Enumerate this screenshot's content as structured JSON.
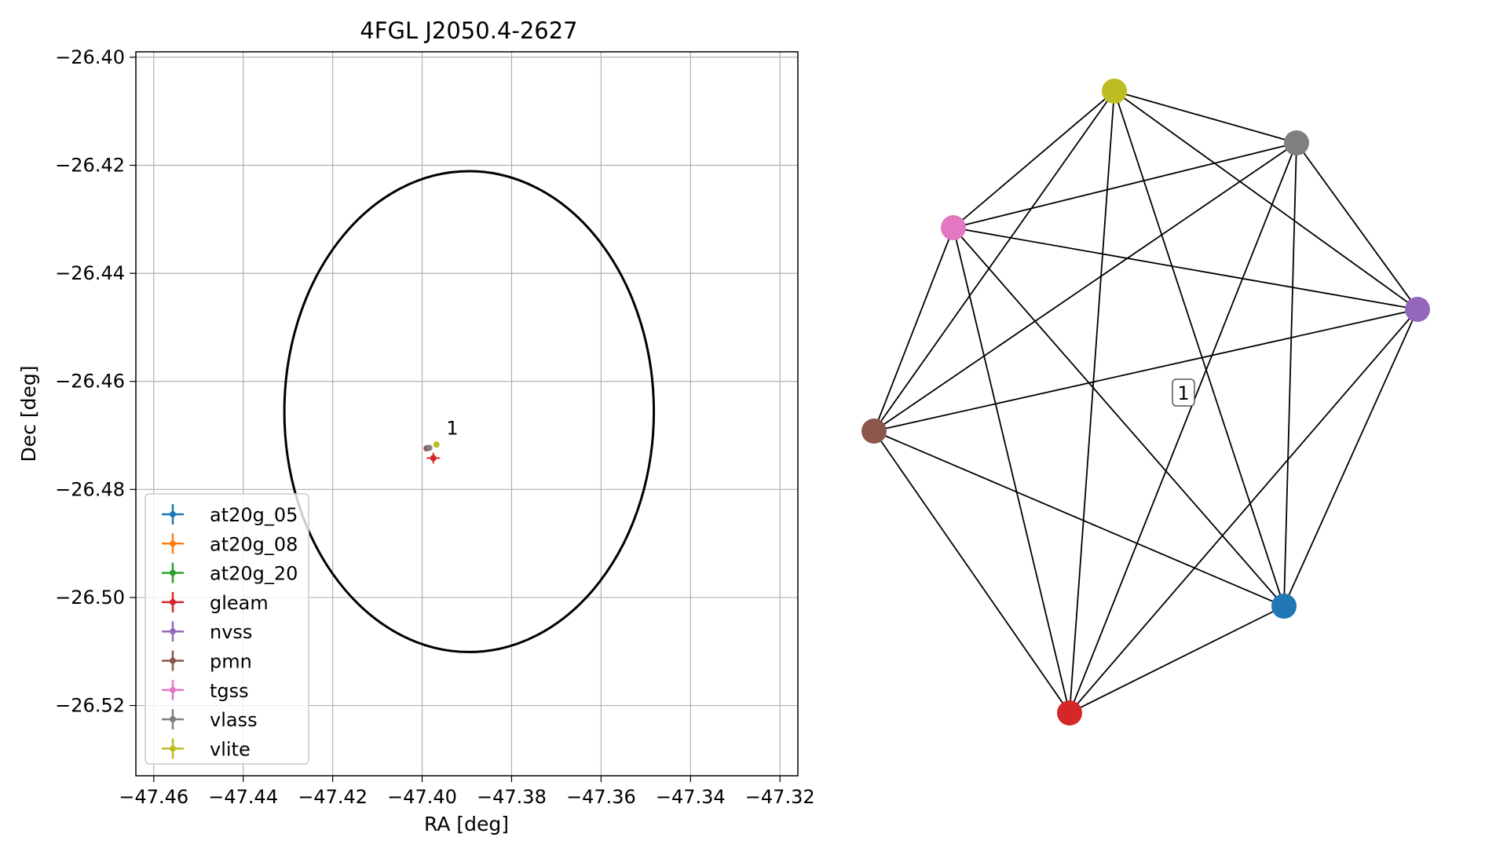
{
  "chart_data": [
    {
      "type": "scatter",
      "title": "4FGL J2050.4-2627",
      "xlabel": "RA [deg]",
      "ylabel": "Dec [deg]",
      "xlim": [
        -47.464,
        -47.316
      ],
      "ylim": [
        -26.533,
        -26.399
      ],
      "x_ticks": [
        -47.46,
        -47.44,
        -47.42,
        -47.4,
        -47.38,
        -47.36,
        -47.34,
        -47.32
      ],
      "y_ticks": [
        -26.4,
        -26.42,
        -26.44,
        -26.46,
        -26.48,
        -26.5,
        -26.52
      ],
      "x_tick_labels": [
        "−47.46",
        "−47.44",
        "−47.42",
        "−47.40",
        "−47.38",
        "−47.36",
        "−47.34",
        "−47.32"
      ],
      "y_tick_labels": [
        "−26.40",
        "−26.42",
        "−26.44",
        "−26.46",
        "−26.48",
        "−26.50",
        "−26.52"
      ],
      "grid": true,
      "legend_position": "lower-left",
      "ellipse": {
        "center": [
          -47.3895,
          -26.4656
        ],
        "ra_semi_axis": 0.0413,
        "dec_semi_axis": 0.0445,
        "color": "#000000"
      },
      "series": [
        {
          "name": "at20g_05",
          "color": "#1f77b4",
          "points": []
        },
        {
          "name": "at20g_08",
          "color": "#ff7f0e",
          "points": []
        },
        {
          "name": "at20g_20",
          "color": "#2ca02c",
          "points": []
        },
        {
          "name": "gleam",
          "color": "#d62728",
          "points": [
            {
              "ra": -47.3975,
              "dec": -26.4742,
              "ra_err": 0.0015,
              "dec_err": 0.001
            }
          ]
        },
        {
          "name": "nvss",
          "color": "#9467bd",
          "points": []
        },
        {
          "name": "pmn",
          "color": "#8c564b",
          "points": [
            {
              "ra": -47.399,
              "dec": -26.4724,
              "ra_err": 0.0003,
              "dec_err": 0.0003
            }
          ]
        },
        {
          "name": "tgss",
          "color": "#e377c2",
          "points": []
        },
        {
          "name": "vlass",
          "color": "#7f7f7f",
          "points": [
            {
              "ra": -47.3984,
              "dec": -26.4723,
              "ra_err": 0.0002,
              "dec_err": 0.0002
            }
          ]
        },
        {
          "name": "vlite",
          "color": "#bcbd22",
          "points": [
            {
              "ra": -47.3968,
              "dec": -26.4717,
              "ra_err": 0.0004,
              "dec_err": 0.0004
            }
          ]
        }
      ],
      "annotations": [
        {
          "text": "1",
          "ra": -47.396,
          "dec": -26.471
        }
      ]
    },
    {
      "type": "network",
      "nodes": [
        {
          "id": "vlite",
          "color": "#bcbd22"
        },
        {
          "id": "vlass",
          "color": "#7f7f7f"
        },
        {
          "id": "nvss",
          "color": "#9467bd"
        },
        {
          "id": "at20g_05",
          "color": "#1f77b4"
        },
        {
          "id": "gleam",
          "color": "#d62728"
        },
        {
          "id": "pmn",
          "color": "#8c564b"
        },
        {
          "id": "tgss",
          "color": "#e377c2"
        }
      ],
      "complete_graph": true,
      "edge_color": "#000000",
      "label": {
        "text": "1"
      }
    }
  ]
}
